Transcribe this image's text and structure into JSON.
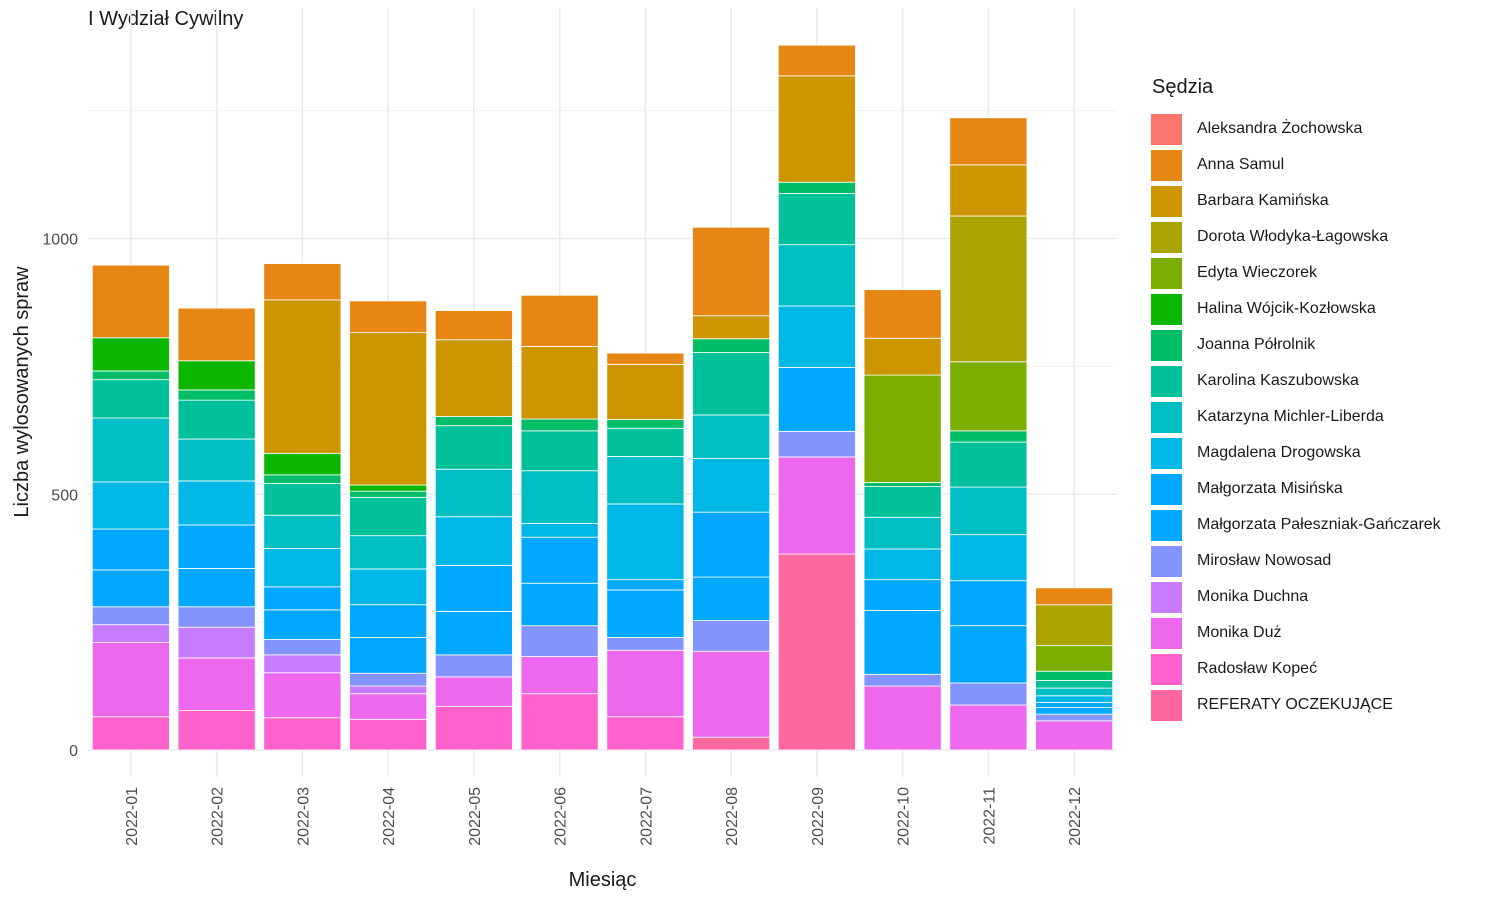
{
  "chart_data": {
    "type": "bar",
    "stacked": true,
    "title": "I Wydział Cywilny",
    "xlabel": "Miesiąc",
    "ylabel": "Liczba wylosowanych spraw",
    "ylim": [
      -55,
      1380
    ],
    "yticks": [
      0,
      500,
      1000
    ],
    "grid": true,
    "legend_title": "Sędzia",
    "legend_position": "right",
    "categories": [
      "2022-01",
      "2022-02",
      "2022-03",
      "2022-04",
      "2022-05",
      "2022-06",
      "2022-07",
      "2022-08",
      "2022-09",
      "2022-10",
      "2022-11",
      "2022-12"
    ],
    "series": [
      {
        "name": "Aleksandra Żochowska",
        "color": "#F8766D",
        "values": [
          0,
          0,
          0,
          0,
          0,
          0,
          0,
          0,
          0,
          0,
          0,
          0
        ]
      },
      {
        "name": "Anna Samul",
        "color": "#E68613",
        "values": [
          142,
          103,
          71,
          62,
          57,
          100,
          22,
          173,
          60,
          95,
          92,
          33
        ]
      },
      {
        "name": "Barbara Kamińska",
        "color": "#CD9600",
        "values": [
          0,
          0,
          300,
          298,
          150,
          142,
          108,
          45,
          208,
          72,
          100,
          0
        ]
      },
      {
        "name": "Dorota Włodyka-Łagowska",
        "color": "#ABA300",
        "values": [
          0,
          0,
          0,
          0,
          0,
          0,
          0,
          0,
          0,
          0,
          285,
          80
        ]
      },
      {
        "name": "Edyta Wieczorek",
        "color": "#7CAE00",
        "values": [
          0,
          0,
          0,
          0,
          0,
          0,
          0,
          0,
          0,
          210,
          135,
          50
        ]
      },
      {
        "name": "Halina Wójcik-Kozłowska",
        "color": "#0CB702",
        "values": [
          65,
          57,
          42,
          12,
          0,
          0,
          0,
          0,
          0,
          0,
          0,
          0
        ]
      },
      {
        "name": "Joanna Półrolnik",
        "color": "#00BE67",
        "values": [
          17,
          20,
          17,
          12,
          18,
          23,
          17,
          27,
          22,
          8,
          22,
          18
        ]
      },
      {
        "name": "Karolina Kaszubowska",
        "color": "#00C19A",
        "values": [
          75,
          76,
          62,
          75,
          85,
          78,
          55,
          122,
          100,
          60,
          88,
          15
        ]
      },
      {
        "name": "Katarzyna Michler-Liberda",
        "color": "#00BFC4",
        "values": [
          125,
          82,
          65,
          65,
          93,
          103,
          93,
          85,
          120,
          62,
          93,
          15
        ]
      },
      {
        "name": "Magdalena Drogowska",
        "color": "#00B8E7",
        "values": [
          92,
          86,
          75,
          70,
          95,
          27,
          148,
          105,
          120,
          60,
          90,
          13
        ]
      },
      {
        "name": "Małgorzata Misińska",
        "color": "#00A9FF",
        "values": [
          80,
          85,
          45,
          64,
          90,
          90,
          20,
          127,
          125,
          60,
          88,
          10
        ]
      },
      {
        "name": "Małgorzata Pałeszniak-Gańczarek",
        "color": "#00A9FF",
        "values": [
          72,
          75,
          58,
          70,
          85,
          83,
          93,
          85,
          0,
          125,
          112,
          13
        ]
      },
      {
        "name": "Mirosław Nowosad",
        "color": "#8494FF",
        "values": [
          35,
          40,
          30,
          25,
          43,
          60,
          25,
          60,
          50,
          23,
          43,
          13
        ]
      },
      {
        "name": "Monika Duchna",
        "color": "#C77CFF",
        "values": [
          35,
          60,
          35,
          15,
          0,
          0,
          0,
          0,
          0,
          0,
          0,
          0
        ]
      },
      {
        "name": "Monika Duż",
        "color": "#ED68ED",
        "values": [
          145,
          103,
          88,
          50,
          58,
          73,
          130,
          168,
          190,
          125,
          88,
          57
        ]
      },
      {
        "name": "Radosław Kopeć",
        "color": "#FF61CC",
        "values": [
          65,
          77,
          63,
          60,
          85,
          110,
          65,
          0,
          0,
          0,
          0,
          0
        ]
      },
      {
        "name": "REFERATY OCZEKUJĄCE",
        "color": "#FF689F",
        "values": [
          0,
          0,
          0,
          0,
          0,
          0,
          0,
          25,
          383,
          0,
          0,
          0
        ]
      }
    ]
  }
}
